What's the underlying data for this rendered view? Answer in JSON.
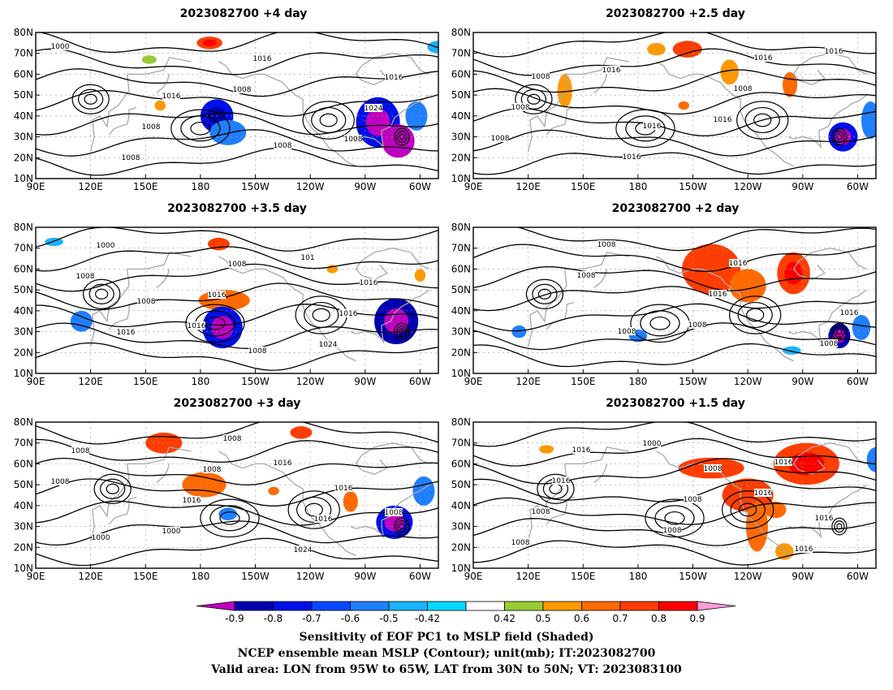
{
  "panels": [
    {
      "id": "p1",
      "title": "2023082700  +4 day",
      "labels": [
        "1000",
        "1016",
        "1008",
        "1016",
        "1008",
        "1016",
        "1024",
        "1008",
        "1008",
        "1008"
      ],
      "shading": [
        {
          "lon": -171,
          "lat": 40,
          "rx": 9,
          "ry": 8,
          "v": -0.75
        },
        {
          "lon": -165,
          "lat": 32,
          "rx": 10,
          "ry": 6,
          "v": -0.6
        },
        {
          "lon": -83,
          "lat": 37,
          "rx": 12,
          "ry": 12,
          "v": -0.8
        },
        {
          "lon": -72,
          "lat": 28,
          "rx": 9,
          "ry": 8,
          "v": -0.9
        },
        {
          "lon": -62,
          "lat": 40,
          "rx": 6,
          "ry": 7,
          "v": -0.55
        },
        {
          "lon": -175,
          "lat": 75,
          "rx": 7,
          "ry": 3,
          "v": 0.75
        },
        {
          "lon": 158,
          "lat": 45,
          "rx": 3,
          "ry": 2.5,
          "v": 0.55
        },
        {
          "lon": 152,
          "lat": 67,
          "rx": 4,
          "ry": 2,
          "v": 0.45
        },
        {
          "lon": -50,
          "lat": 73,
          "rx": 6,
          "ry": 3,
          "v": -0.5
        }
      ]
    },
    {
      "id": "p2",
      "title": "2023082700  +2.5 day",
      "labels": [
        "1008",
        "1016",
        "1016",
        "1008",
        "1016",
        "1008",
        "1008",
        "1016",
        "1016",
        "1016"
      ],
      "shading": [
        {
          "lon": -153,
          "lat": 72,
          "rx": 8,
          "ry": 4,
          "v": 0.7
        },
        {
          "lon": -130,
          "lat": 61,
          "rx": 5,
          "ry": 6,
          "v": 0.55
        },
        {
          "lon": -97,
          "lat": 55,
          "rx": 4,
          "ry": 6,
          "v": 0.65
        },
        {
          "lon": -68,
          "lat": 30,
          "rx": 8,
          "ry": 7,
          "v": -0.8
        },
        {
          "lon": -53,
          "lat": 38,
          "rx": 5,
          "ry": 9,
          "v": -0.6
        },
        {
          "lon": 140,
          "lat": 52,
          "rx": 4,
          "ry": 8,
          "v": 0.5
        },
        {
          "lon": -155,
          "lat": 45,
          "rx": 3,
          "ry": 2,
          "v": 0.6
        },
        {
          "lon": -170,
          "lat": 72,
          "rx": 5,
          "ry": 3,
          "v": 0.5
        }
      ]
    },
    {
      "id": "p3",
      "title": "2023082700  +3.5 day",
      "labels": [
        "1008",
        "1008",
        "1016",
        "1016",
        "1008",
        "1016",
        "1000",
        "1016",
        "1024",
        "1008",
        "1016",
        "101"
      ],
      "shading": [
        {
          "lon": -167,
          "lat": 45,
          "rx": 14,
          "ry": 5,
          "v": 0.6
        },
        {
          "lon": -168,
          "lat": 32,
          "rx": 11,
          "ry": 10,
          "v": -0.8
        },
        {
          "lon": -73,
          "lat": 35,
          "rx": 12,
          "ry": 11,
          "v": -0.85
        },
        {
          "lon": -170,
          "lat": 72,
          "rx": 6,
          "ry": 3,
          "v": 0.7
        },
        {
          "lon": 115,
          "lat": 35,
          "rx": 6,
          "ry": 5,
          "v": -0.6
        },
        {
          "lon": -108,
          "lat": 60,
          "rx": 3,
          "ry": 2,
          "v": 0.55
        },
        {
          "lon": -60,
          "lat": 57,
          "rx": 3,
          "ry": 3,
          "v": 0.5
        },
        {
          "lon": 100,
          "lat": 73,
          "rx": 5,
          "ry": 2,
          "v": -0.5
        }
      ]
    },
    {
      "id": "p4",
      "title": "2023082700  +2 day",
      "labels": [
        "1008",
        "1016",
        "1016",
        "1008",
        "1016",
        "1008",
        "1008",
        "1008"
      ],
      "shading": [
        {
          "lon": -140,
          "lat": 60,
          "rx": 16,
          "ry": 12,
          "v": 0.7
        },
        {
          "lon": -120,
          "lat": 52,
          "rx": 10,
          "ry": 8,
          "v": 0.65
        },
        {
          "lon": -95,
          "lat": 58,
          "rx": 9,
          "ry": 10,
          "v": 0.75
        },
        {
          "lon": -70,
          "lat": 28,
          "rx": 6,
          "ry": 6,
          "v": -0.85
        },
        {
          "lon": -58,
          "lat": 32,
          "rx": 5,
          "ry": 6,
          "v": -0.6
        },
        {
          "lon": -180,
          "lat": 28,
          "rx": 5,
          "ry": 3,
          "v": -0.55
        },
        {
          "lon": 115,
          "lat": 30,
          "rx": 4,
          "ry": 3,
          "v": -0.55
        },
        {
          "lon": -96,
          "lat": 21,
          "rx": 5,
          "ry": 2,
          "v": -0.5
        }
      ]
    },
    {
      "id": "p5",
      "title": "2023082700  +3 day",
      "labels": [
        "1008",
        "1016",
        "1000",
        "1008",
        "1016",
        "1008",
        "1016",
        "1024",
        "1008",
        "1000",
        "1016",
        "1008"
      ],
      "shading": [
        {
          "lon": 160,
          "lat": 70,
          "rx": 10,
          "ry": 5,
          "v": 0.7
        },
        {
          "lon": -178,
          "lat": 50,
          "rx": 12,
          "ry": 6,
          "v": 0.65
        },
        {
          "lon": -74,
          "lat": 32,
          "rx": 10,
          "ry": 8,
          "v": -0.8
        },
        {
          "lon": -58,
          "lat": 47,
          "rx": 6,
          "ry": 7,
          "v": -0.6
        },
        {
          "lon": -125,
          "lat": 75,
          "rx": 6,
          "ry": 3,
          "v": 0.7
        },
        {
          "lon": -165,
          "lat": 36,
          "rx": 5,
          "ry": 3,
          "v": -0.55
        },
        {
          "lon": -98,
          "lat": 42,
          "rx": 4,
          "ry": 5,
          "v": 0.6
        },
        {
          "lon": -140,
          "lat": 47,
          "rx": 3,
          "ry": 2,
          "v": 0.6
        }
      ]
    },
    {
      "id": "p6",
      "title": "2023082700  +1.5 day",
      "labels": [
        "1008",
        "1016",
        "1016",
        "1008",
        "1016",
        "1016",
        "1008",
        "1016",
        "1008",
        "1000",
        "1016",
        "1008"
      ],
      "shading": [
        {
          "lon": -140,
          "lat": 58,
          "rx": 18,
          "ry": 5,
          "v": 0.7
        },
        {
          "lon": -120,
          "lat": 45,
          "rx": 14,
          "ry": 8,
          "v": 0.7
        },
        {
          "lon": -88,
          "lat": 60,
          "rx": 18,
          "ry": 10,
          "v": 0.75
        },
        {
          "lon": -115,
          "lat": 30,
          "rx": 6,
          "ry": 12,
          "v": 0.6
        },
        {
          "lon": -105,
          "lat": 38,
          "rx": 6,
          "ry": 4,
          "v": 0.65
        },
        {
          "lon": -100,
          "lat": 18,
          "rx": 5,
          "ry": 4,
          "v": 0.55
        },
        {
          "lon": -50,
          "lat": 62,
          "rx": 5,
          "ry": 6,
          "v": -0.55
        },
        {
          "lon": 130,
          "lat": 67,
          "rx": 4,
          "ry": 2,
          "v": 0.55
        }
      ]
    }
  ],
  "map_extent": {
    "lon": [
      90,
      310
    ],
    "lat": [
      10,
      80
    ]
  },
  "axis": {
    "x_ticks": [
      90,
      120,
      150,
      180,
      210,
      240,
      270,
      300
    ],
    "x_labels": [
      "90E",
      "120E",
      "150E",
      "180",
      "150W",
      "120W",
      "90W",
      "60W"
    ],
    "y_ticks": [
      10,
      20,
      30,
      40,
      50,
      60,
      70,
      80
    ],
    "y_labels": [
      "10N",
      "20N",
      "30N",
      "40N",
      "50N",
      "60N",
      "70N",
      "80N"
    ]
  },
  "colorbar": {
    "ticks": [
      "-0.9",
      "-0.8",
      "-0.7",
      "-0.6",
      "-0.5",
      "-0.42",
      "0.42",
      "0.5",
      "0.6",
      "0.7",
      "0.8",
      "0.9"
    ],
    "colors": [
      "#c000c0",
      "#0000b0",
      "#0010e8",
      "#0848ff",
      "#1f7fff",
      "#19b3ff",
      "#00d8ff",
      "#ffffff",
      "#99cc33",
      "#ff9900",
      "#ff6a00",
      "#ff3d00",
      "#ff0000",
      "#ff9ed8"
    ]
  },
  "captions": [
    "Sensitivity of EOF PC1 to MSLP field (Shaded)",
    "NCEP ensemble mean MSLP (Contour); unit(mb); IT:2023082700",
    "Valid area: LON from 95W to 65W, LAT from 30N to 50N; VT: 2023083100"
  ],
  "colors": {
    "contour": "#000000",
    "coast": "#a8a8a8",
    "grid": "#999999"
  }
}
